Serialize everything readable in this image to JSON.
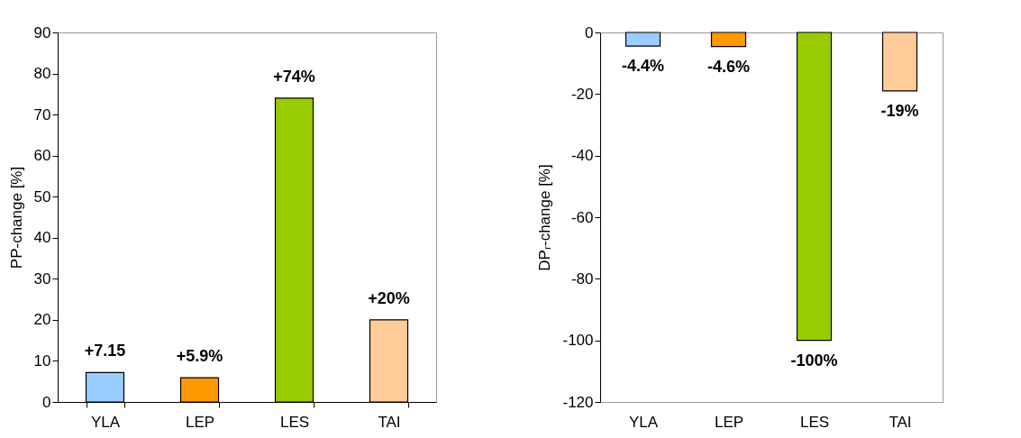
{
  "chart_data": [
    {
      "type": "bar",
      "categories": [
        "YLA",
        "LEP",
        "LES",
        "TAI"
      ],
      "values": [
        7.15,
        5.9,
        74,
        20
      ],
      "colors": [
        "#99ccff",
        "#ff9900",
        "#99cc00",
        "#ffcc99"
      ],
      "value_labels": [
        "+7.15",
        "+5.9%",
        "+74%",
        "+20%"
      ],
      "ylabel": "PP-change [%]",
      "ylim": [
        0,
        90
      ],
      "yticks": [
        0,
        10,
        20,
        30,
        40,
        50,
        60,
        70,
        80,
        90
      ]
    },
    {
      "type": "bar",
      "categories": [
        "YLA",
        "LEP",
        "LES",
        "TAI"
      ],
      "values": [
        -4.4,
        -4.6,
        -100,
        -19
      ],
      "colors": [
        "#99ccff",
        "#ff9900",
        "#99cc00",
        "#ffcc99"
      ],
      "value_labels": [
        "-4.4%",
        "-4.6%",
        "-100%",
        "-19%"
      ],
      "ylabel": "DPᵣ-change [%]",
      "ylim": [
        -120,
        0
      ],
      "yticks": [
        -120,
        -100,
        -80,
        -60,
        -40,
        -20,
        0
      ]
    }
  ]
}
